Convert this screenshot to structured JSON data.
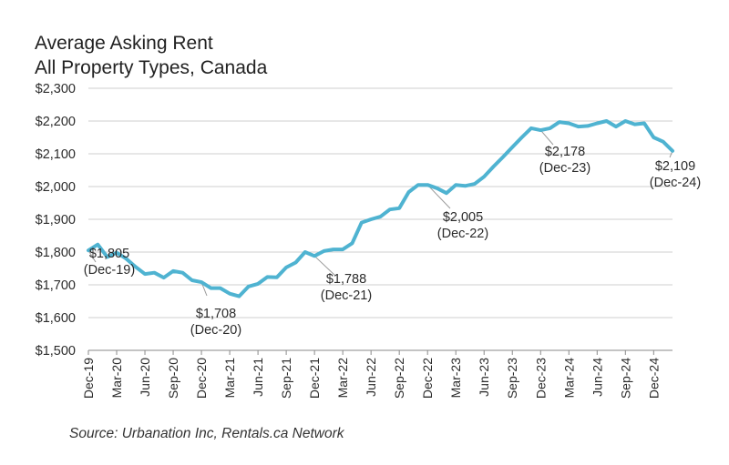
{
  "chart_data": {
    "type": "line",
    "title": "Average Asking Rent",
    "subtitle": "All Property Types, Canada",
    "source": "Source: Urbanation Inc, Rentals.ca Network",
    "ylim": [
      1500,
      2300
    ],
    "yticks": [
      "$1,500",
      "$1,600",
      "$1,700",
      "$1,800",
      "$1,900",
      "$2,000",
      "$2,100",
      "$2,200",
      "$2,300"
    ],
    "grid": true,
    "xtick_labels": [
      "Dec-19",
      "Mar-20",
      "Jun-20",
      "Sep-20",
      "Dec-20",
      "Mar-21",
      "Jun-21",
      "Sep-21",
      "Dec-21",
      "Mar-22",
      "Jun-22",
      "Sep-22",
      "Dec-22",
      "Mar-23",
      "Jun-23",
      "Sep-23",
      "Dec-23",
      "Mar-24",
      "Jun-24",
      "Sep-24",
      "Dec-24"
    ],
    "color": "#4fb3d1",
    "series": [
      {
        "values": [
          1805,
          1823,
          1785,
          1798,
          1780,
          1755,
          1733,
          1737,
          1722,
          1742,
          1737,
          1714,
          1708,
          1690,
          1690,
          1673,
          1665,
          1695,
          1703,
          1724,
          1723,
          1753,
          1768,
          1800,
          1788,
          1803,
          1808,
          1808,
          1827,
          1890,
          1900,
          1908,
          1930,
          1934,
          1983,
          2005,
          2005,
          1995,
          1980,
          2005,
          2002,
          2008,
          2030,
          2061,
          2090,
          2120,
          2150,
          2178,
          2172,
          2178,
          2197,
          2193,
          2183,
          2185,
          2193,
          2200,
          2183,
          2200,
          2190,
          2193,
          2150,
          2137,
          2109
        ]
      }
    ],
    "annotations": [
      {
        "value": "$1,805",
        "date": "(Dec-19)"
      },
      {
        "value": "$1,708",
        "date": "(Dec-20)"
      },
      {
        "value": "$1,788",
        "date": "(Dec-21)"
      },
      {
        "value": "$2,005",
        "date": "(Dec-22)"
      },
      {
        "value": "$2,178",
        "date": "(Dec-23)"
      },
      {
        "value": "$2,109",
        "date": "(Dec-24)"
      }
    ]
  }
}
